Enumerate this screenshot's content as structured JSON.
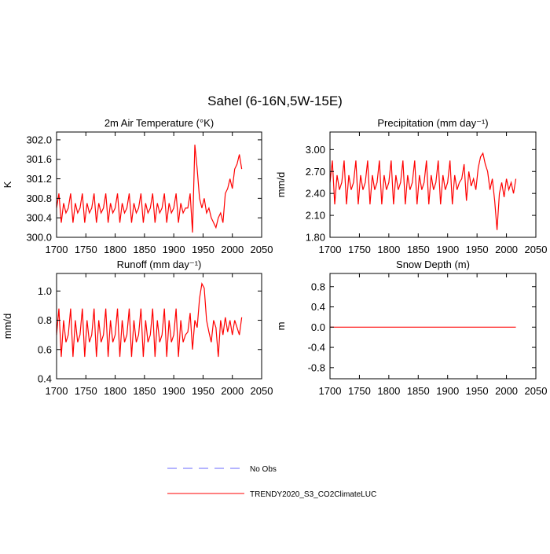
{
  "title": "Sahel (6-16N,5W-15E)",
  "legend": [
    {
      "name": "No Obs",
      "color": "#6a6aff",
      "dashed": true
    },
    {
      "name": "TRENDY2020_S3_CO2ClimateLUC",
      "color": "#ff0000",
      "dashed": false
    }
  ],
  "chart_data": [
    {
      "type": "line",
      "title": "2m Air Temperature (°K)",
      "y_label": "K",
      "x": [
        1700,
        1704,
        1708,
        1712,
        1716,
        1720,
        1724,
        1728,
        1732,
        1736,
        1740,
        1744,
        1748,
        1752,
        1756,
        1760,
        1764,
        1768,
        1772,
        1776,
        1780,
        1784,
        1788,
        1792,
        1796,
        1800,
        1804,
        1808,
        1812,
        1816,
        1820,
        1824,
        1828,
        1832,
        1836,
        1840,
        1844,
        1848,
        1852,
        1856,
        1860,
        1864,
        1868,
        1872,
        1876,
        1880,
        1884,
        1888,
        1892,
        1896,
        1900,
        1904,
        1908,
        1912,
        1916,
        1920,
        1924,
        1928,
        1932,
        1936,
        1940,
        1944,
        1948,
        1952,
        1956,
        1960,
        1964,
        1968,
        1972,
        1976,
        1980,
        1984,
        1988,
        1992,
        1996,
        2000,
        2004,
        2008,
        2012,
        2016
      ],
      "series": [
        {
          "color": "#ff0000",
          "values": [
            300.6,
            300.9,
            300.3,
            300.7,
            300.5,
            300.6,
            300.9,
            300.3,
            300.7,
            300.5,
            300.6,
            300.9,
            300.3,
            300.7,
            300.5,
            300.6,
            300.9,
            300.3,
            300.7,
            300.5,
            300.6,
            300.9,
            300.3,
            300.7,
            300.5,
            300.6,
            300.9,
            300.3,
            300.7,
            300.5,
            300.6,
            300.9,
            300.3,
            300.7,
            300.5,
            300.6,
            300.9,
            300.3,
            300.7,
            300.5,
            300.6,
            300.9,
            300.3,
            300.7,
            300.5,
            300.6,
            300.9,
            300.3,
            300.7,
            300.5,
            300.6,
            300.9,
            300.3,
            300.7,
            300.5,
            300.6,
            300.6,
            300.9,
            300.1,
            301.9,
            301.4,
            300.8,
            300.6,
            300.8,
            300.5,
            300.6,
            300.4,
            300.3,
            300.2,
            300.4,
            300.5,
            300.3,
            300.9,
            301.0,
            301.2,
            301.0,
            301.4,
            301.5,
            301.7,
            301.4
          ]
        }
      ],
      "xlim": [
        1700,
        2050
      ],
      "xticks": [
        1700,
        1750,
        1800,
        1850,
        1900,
        1950,
        2000,
        2050
      ],
      "ylim": [
        300,
        302.16
      ],
      "yticks": [
        {
          "value": 300,
          "label": "300.0"
        },
        300.4,
        300.8,
        301.2,
        301.6,
        {
          "value": 302,
          "label": "302.0"
        }
      ]
    },
    {
      "type": "line",
      "title": "Precipitation (mm day⁻¹)",
      "y_label": "mm/d",
      "x": [
        1700,
        1704,
        1708,
        1712,
        1716,
        1720,
        1724,
        1728,
        1732,
        1736,
        1740,
        1744,
        1748,
        1752,
        1756,
        1760,
        1764,
        1768,
        1772,
        1776,
        1780,
        1784,
        1788,
        1792,
        1796,
        1800,
        1804,
        1808,
        1812,
        1816,
        1820,
        1824,
        1828,
        1832,
        1836,
        1840,
        1844,
        1848,
        1852,
        1856,
        1860,
        1864,
        1868,
        1872,
        1876,
        1880,
        1884,
        1888,
        1892,
        1896,
        1900,
        1904,
        1908,
        1912,
        1916,
        1920,
        1924,
        1928,
        1932,
        1936,
        1940,
        1944,
        1948,
        1952,
        1956,
        1960,
        1964,
        1968,
        1972,
        1976,
        1980,
        1984,
        1988,
        1992,
        1996,
        2000,
        2004,
        2008,
        2012,
        2016
      ],
      "series": [
        {
          "color": "#ff0000",
          "values": [
            2.55,
            2.85,
            2.25,
            2.65,
            2.45,
            2.55,
            2.85,
            2.25,
            2.65,
            2.45,
            2.55,
            2.85,
            2.25,
            2.65,
            2.45,
            2.55,
            2.85,
            2.25,
            2.65,
            2.45,
            2.55,
            2.85,
            2.25,
            2.65,
            2.45,
            2.55,
            2.85,
            2.25,
            2.65,
            2.45,
            2.55,
            2.85,
            2.25,
            2.65,
            2.45,
            2.55,
            2.85,
            2.25,
            2.65,
            2.45,
            2.55,
            2.85,
            2.25,
            2.65,
            2.45,
            2.55,
            2.85,
            2.25,
            2.65,
            2.45,
            2.55,
            2.85,
            2.25,
            2.65,
            2.45,
            2.55,
            2.6,
            2.8,
            2.3,
            2.7,
            2.5,
            2.6,
            2.45,
            2.75,
            2.9,
            2.95,
            2.8,
            2.7,
            2.45,
            2.6,
            2.3,
            1.9,
            2.4,
            2.55,
            2.35,
            2.6,
            2.45,
            2.55,
            2.4,
            2.6
          ]
        }
      ],
      "xlim": [
        1700,
        2050
      ],
      "xticks": [
        1700,
        1750,
        1800,
        1850,
        1900,
        1950,
        2000,
        2050
      ],
      "ylim": [
        1.8,
        3.24
      ],
      "yticks": [
        {
          "value": 1.8,
          "label": "1.80"
        },
        {
          "value": 2.1,
          "label": "2.10"
        },
        {
          "value": 2.4,
          "label": "2.40"
        },
        {
          "value": 2.7,
          "label": "2.70"
        },
        {
          "value": 3,
          "label": "3.00"
        }
      ]
    },
    {
      "type": "line",
      "title": "Runoff (mm day⁻¹)",
      "y_label": "mm/d",
      "x": [
        1700,
        1704,
        1708,
        1712,
        1716,
        1720,
        1724,
        1728,
        1732,
        1736,
        1740,
        1744,
        1748,
        1752,
        1756,
        1760,
        1764,
        1768,
        1772,
        1776,
        1780,
        1784,
        1788,
        1792,
        1796,
        1800,
        1804,
        1808,
        1812,
        1816,
        1820,
        1824,
        1828,
        1832,
        1836,
        1840,
        1844,
        1848,
        1852,
        1856,
        1860,
        1864,
        1868,
        1872,
        1876,
        1880,
        1884,
        1888,
        1892,
        1896,
        1900,
        1904,
        1908,
        1912,
        1916,
        1920,
        1924,
        1928,
        1932,
        1936,
        1940,
        1944,
        1948,
        1952,
        1956,
        1960,
        1964,
        1968,
        1972,
        1976,
        1980,
        1984,
        1988,
        1992,
        1996,
        2000,
        2004,
        2008,
        2012,
        2016
      ],
      "series": [
        {
          "color": "#ff0000",
          "values": [
            0.7,
            0.88,
            0.55,
            0.8,
            0.65,
            0.7,
            0.88,
            0.55,
            0.8,
            0.65,
            0.7,
            0.88,
            0.55,
            0.8,
            0.65,
            0.7,
            0.88,
            0.55,
            0.8,
            0.65,
            0.7,
            0.88,
            0.55,
            0.8,
            0.65,
            0.7,
            0.88,
            0.55,
            0.8,
            0.65,
            0.7,
            0.88,
            0.55,
            0.8,
            0.65,
            0.7,
            0.88,
            0.55,
            0.8,
            0.65,
            0.7,
            0.88,
            0.55,
            0.8,
            0.65,
            0.7,
            0.88,
            0.55,
            0.8,
            0.65,
            0.7,
            0.88,
            0.55,
            0.8,
            0.65,
            0.7,
            0.72,
            0.85,
            0.6,
            0.8,
            0.75,
            0.95,
            1.05,
            1.02,
            0.8,
            0.72,
            0.65,
            0.8,
            0.75,
            0.55,
            0.8,
            0.7,
            0.82,
            0.72,
            0.8,
            0.7,
            0.8,
            0.75,
            0.7,
            0.82
          ]
        }
      ],
      "xlim": [
        1700,
        2050
      ],
      "xticks": [
        1700,
        1750,
        1800,
        1850,
        1900,
        1950,
        2000,
        2050
      ],
      "ylim": [
        0.4,
        1.12
      ],
      "yticks": [
        0.4,
        0.6,
        0.8,
        {
          "value": 1,
          "label": "1.0"
        }
      ]
    },
    {
      "type": "line",
      "title": "Snow Depth (m)",
      "y_label": "m",
      "x": [
        1700,
        1704,
        1708,
        1712,
        1716,
        1720,
        1724,
        1728,
        1732,
        1736,
        1740,
        1744,
        1748,
        1752,
        1756,
        1760,
        1764,
        1768,
        1772,
        1776,
        1780,
        1784,
        1788,
        1792,
        1796,
        1800,
        1804,
        1808,
        1812,
        1816,
        1820,
        1824,
        1828,
        1832,
        1836,
        1840,
        1844,
        1848,
        1852,
        1856,
        1860,
        1864,
        1868,
        1872,
        1876,
        1880,
        1884,
        1888,
        1892,
        1896,
        1900,
        1904,
        1908,
        1912,
        1916,
        1920,
        1924,
        1928,
        1932,
        1936,
        1940,
        1944,
        1948,
        1952,
        1956,
        1960,
        1964,
        1968,
        1972,
        1976,
        1980,
        1984,
        1988,
        1992,
        1996,
        2000,
        2004,
        2008,
        2012,
        2016
      ],
      "series": [
        {
          "color": "#ff0000",
          "values": [
            0,
            0,
            0,
            0,
            0,
            0,
            0,
            0,
            0,
            0,
            0,
            0,
            0,
            0,
            0,
            0,
            0,
            0,
            0,
            0,
            0,
            0,
            0,
            0,
            0,
            0,
            0,
            0,
            0,
            0,
            0,
            0,
            0,
            0,
            0,
            0,
            0,
            0,
            0,
            0,
            0,
            0,
            0,
            0,
            0,
            0,
            0,
            0,
            0,
            0,
            0,
            0,
            0,
            0,
            0,
            0,
            0,
            0,
            0,
            0,
            0,
            0,
            0,
            0,
            0,
            0,
            0,
            0,
            0,
            0,
            0,
            0,
            0,
            0,
            0,
            0,
            0,
            0,
            0,
            0
          ]
        }
      ],
      "xlim": [
        1700,
        2050
      ],
      "xticks": [
        1700,
        1750,
        1800,
        1850,
        1900,
        1950,
        2000,
        2050
      ],
      "ylim": [
        -1.02,
        1.06
      ],
      "yticks": [
        -0.8,
        -0.4,
        {
          "value": 0,
          "label": "0.0"
        },
        0.4,
        0.8
      ]
    }
  ]
}
